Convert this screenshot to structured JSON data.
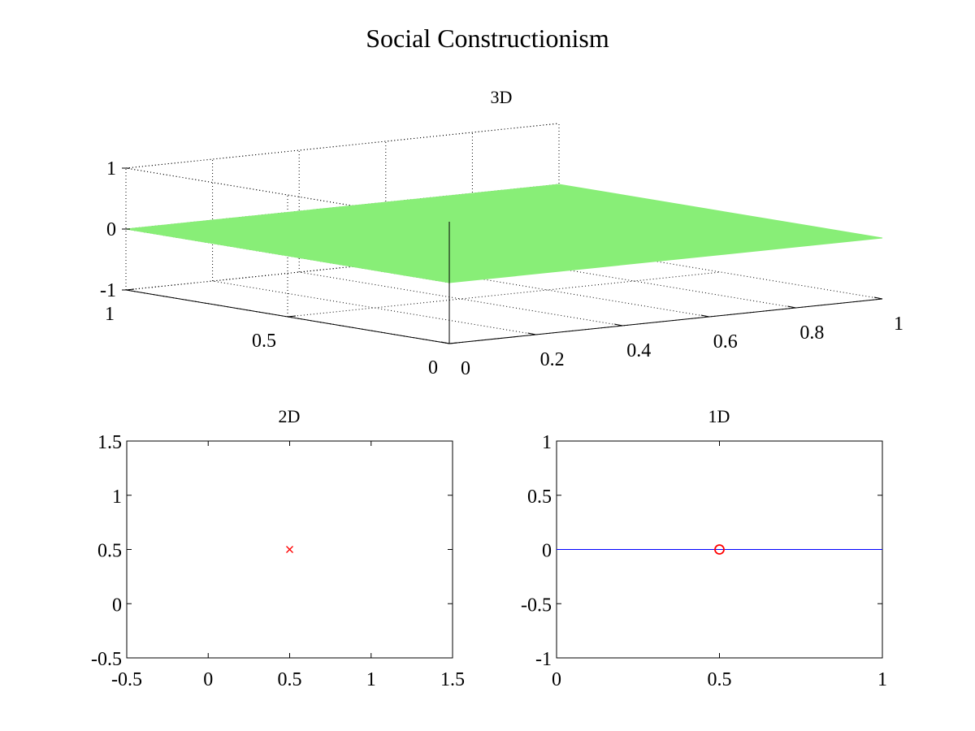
{
  "figure": {
    "title": "Social Constructionism",
    "background": "#ffffff"
  },
  "chart_data": [
    {
      "id": "plot3d",
      "type": "surface",
      "title": "3D",
      "x_ticks": [
        "0",
        "0.2",
        "0.4",
        "0.6",
        "0.8",
        "1"
      ],
      "y_ticks": [
        "0",
        "0.5",
        "1"
      ],
      "z_ticks": [
        "-1",
        "0",
        "1"
      ],
      "xlim": [
        0,
        1
      ],
      "ylim": [
        0,
        1
      ],
      "zlim": [
        -1,
        1
      ],
      "grid": true,
      "surface": {
        "x": [
          0,
          1
        ],
        "y": [
          0,
          1
        ],
        "z": [
          [
            0,
            0
          ],
          [
            0,
            0
          ]
        ],
        "color": "#88ee77"
      }
    },
    {
      "id": "plot2d",
      "type": "scatter",
      "title": "2D",
      "x_ticks": [
        "-0.5",
        "0",
        "0.5",
        "1",
        "1.5"
      ],
      "y_ticks": [
        "-0.5",
        "0",
        "0.5",
        "1",
        "1.5"
      ],
      "xlim": [
        -0.5,
        1.5
      ],
      "ylim": [
        -0.5,
        1.5
      ],
      "grid": false,
      "points": [
        {
          "x": 0.5,
          "y": 0.5,
          "marker": "x",
          "color": "#ff0000"
        }
      ]
    },
    {
      "id": "plot1d",
      "type": "line",
      "title": "1D",
      "x_ticks": [
        "0",
        "0.5",
        "1"
      ],
      "y_ticks": [
        "-1",
        "-0.5",
        "0",
        "0.5",
        "1"
      ],
      "xlim": [
        0,
        1
      ],
      "ylim": [
        -1,
        1
      ],
      "grid": false,
      "line": {
        "x": [
          0,
          1
        ],
        "y": [
          0,
          0
        ],
        "color": "#0000ff"
      },
      "points": [
        {
          "x": 0.5,
          "y": 0,
          "marker": "o",
          "color": "#ff0000"
        }
      ]
    }
  ]
}
